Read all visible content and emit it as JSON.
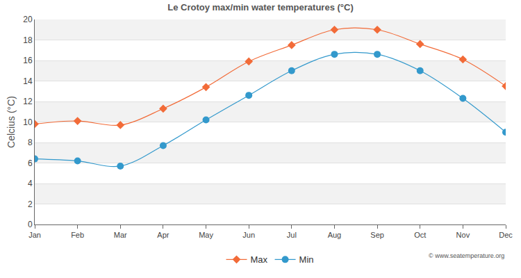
{
  "chart_data": {
    "type": "line",
    "title": "Le Crotoy max/min water temperatures (°C)",
    "y_label": "Celcius (°C)",
    "categories": [
      "Jan",
      "Feb",
      "Mar",
      "Apr",
      "May",
      "Jun",
      "Jul",
      "Aug",
      "Sep",
      "Oct",
      "Nov",
      "Dec"
    ],
    "series": [
      {
        "name": "Max",
        "color": "#f26b38",
        "marker": "diamond",
        "line_style": "solid",
        "values": [
          9.8,
          10.1,
          9.7,
          11.3,
          13.4,
          15.9,
          17.5,
          19.0,
          19.0,
          17.6,
          16.1,
          13.5
        ]
      },
      {
        "name": "Min",
        "color": "#3399cc",
        "marker": "circle",
        "line_style": "solid",
        "values": [
          6.4,
          6.2,
          5.7,
          7.7,
          10.2,
          12.6,
          15.0,
          16.6,
          16.6,
          15.0,
          12.3,
          9.0
        ]
      }
    ],
    "ylim": [
      0,
      20
    ],
    "yticks": [
      0,
      2,
      4,
      6,
      8,
      10,
      12,
      14,
      16,
      18,
      20
    ],
    "grid": true,
    "legend": "bottom",
    "annotations": [
      "© www.seatemperature.org"
    ]
  }
}
